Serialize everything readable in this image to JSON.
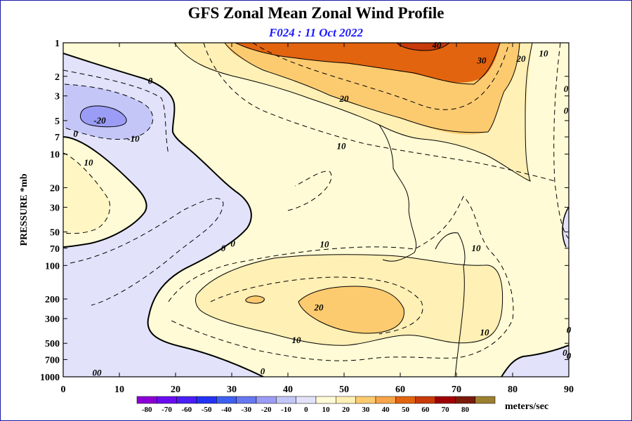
{
  "chart_data": {
    "type": "heatmap",
    "title": "GFS Zonal Mean Zonal Wind Profile",
    "subtitle": "F024 : 11 Oct 2022",
    "xlabel": "",
    "ylabel": "PRESSURE *mb",
    "units": "meters/sec",
    "x_ticks": [
      0,
      10,
      20,
      30,
      40,
      50,
      60,
      70,
      80,
      90
    ],
    "xlim": [
      0,
      90
    ],
    "y_ticks": [
      1,
      2,
      3,
      5,
      7,
      10,
      20,
      30,
      50,
      70,
      100,
      200,
      300,
      500,
      700,
      1000
    ],
    "y_tick_labels": [
      "1",
      "2",
      "3",
      "5",
      "7",
      "10",
      "20",
      "30",
      "50",
      "70",
      "100",
      "200",
      "300",
      "500",
      "700",
      "1000"
    ],
    "ylim": [
      1000,
      1
    ],
    "y_scale": "log",
    "levels": [
      -80,
      -70,
      -60,
      -50,
      -40,
      -30,
      -20,
      -10,
      0,
      10,
      20,
      30,
      40,
      50,
      60,
      70,
      80
    ],
    "level_labels": [
      "-80",
      "-70",
      "-60",
      "-50",
      "-40",
      "-30",
      "-20",
      "-10",
      "0",
      "10",
      "20",
      "30",
      "40",
      "50",
      "60",
      "70",
      "80"
    ],
    "colors": [
      "#8a00d4",
      "#6a0cf0",
      "#4a1ef5",
      "#2233f5",
      "#3f5ff0",
      "#6677f0",
      "#9a9cf5",
      "#c4c6f8",
      "#e2e3fb",
      "#fffbd6",
      "#fff0b5",
      "#fccb70",
      "#f8a54b",
      "#e2640f",
      "#c83a0a",
      "#a00000",
      "#7a1a0a",
      "#9a8030"
    ],
    "annotations": [
      {
        "text": "-20",
        "x": 6.5,
        "y": 5
      },
      {
        "text": "-10",
        "x": 12.5,
        "y": 7.3
      },
      {
        "text": "0",
        "x": 15.5,
        "y": 2.2
      },
      {
        "text": "0",
        "x": 2.2,
        "y": 6.6
      },
      {
        "text": "10",
        "x": 4.5,
        "y": 12
      },
      {
        "text": "0",
        "x": 28.5,
        "y": 70
      },
      {
        "text": "0",
        "x": 30.2,
        "y": 64
      },
      {
        "text": "10",
        "x": 46.5,
        "y": 65
      },
      {
        "text": "10",
        "x": 49.5,
        "y": 8.5
      },
      {
        "text": "20",
        "x": 50,
        "y": 3.2
      },
      {
        "text": "30",
        "x": 74.5,
        "y": 1.45
      },
      {
        "text": "40",
        "x": 66.5,
        "y": 1.05
      },
      {
        "text": "20",
        "x": 81.5,
        "y": 1.4
      },
      {
        "text": "10",
        "x": 85.5,
        "y": 1.25
      },
      {
        "text": "0",
        "x": 89.5,
        "y": 2.6
      },
      {
        "text": "0",
        "x": 89.5,
        "y": 4.1
      },
      {
        "text": "10",
        "x": 73.5,
        "y": 70
      },
      {
        "text": "20",
        "x": 45.5,
        "y": 240
      },
      {
        "text": "10",
        "x": 41.5,
        "y": 470
      },
      {
        "text": "10",
        "x": 75,
        "y": 400
      },
      {
        "text": "0",
        "x": 90,
        "y": 380
      },
      {
        "text": "0",
        "x": 89.3,
        "y": 610
      },
      {
        "text": "0",
        "x": 90,
        "y": 650
      },
      {
        "text": "0",
        "x": 35.5,
        "y": 900
      },
      {
        "text": "00",
        "x": 6,
        "y": 920
      }
    ]
  }
}
